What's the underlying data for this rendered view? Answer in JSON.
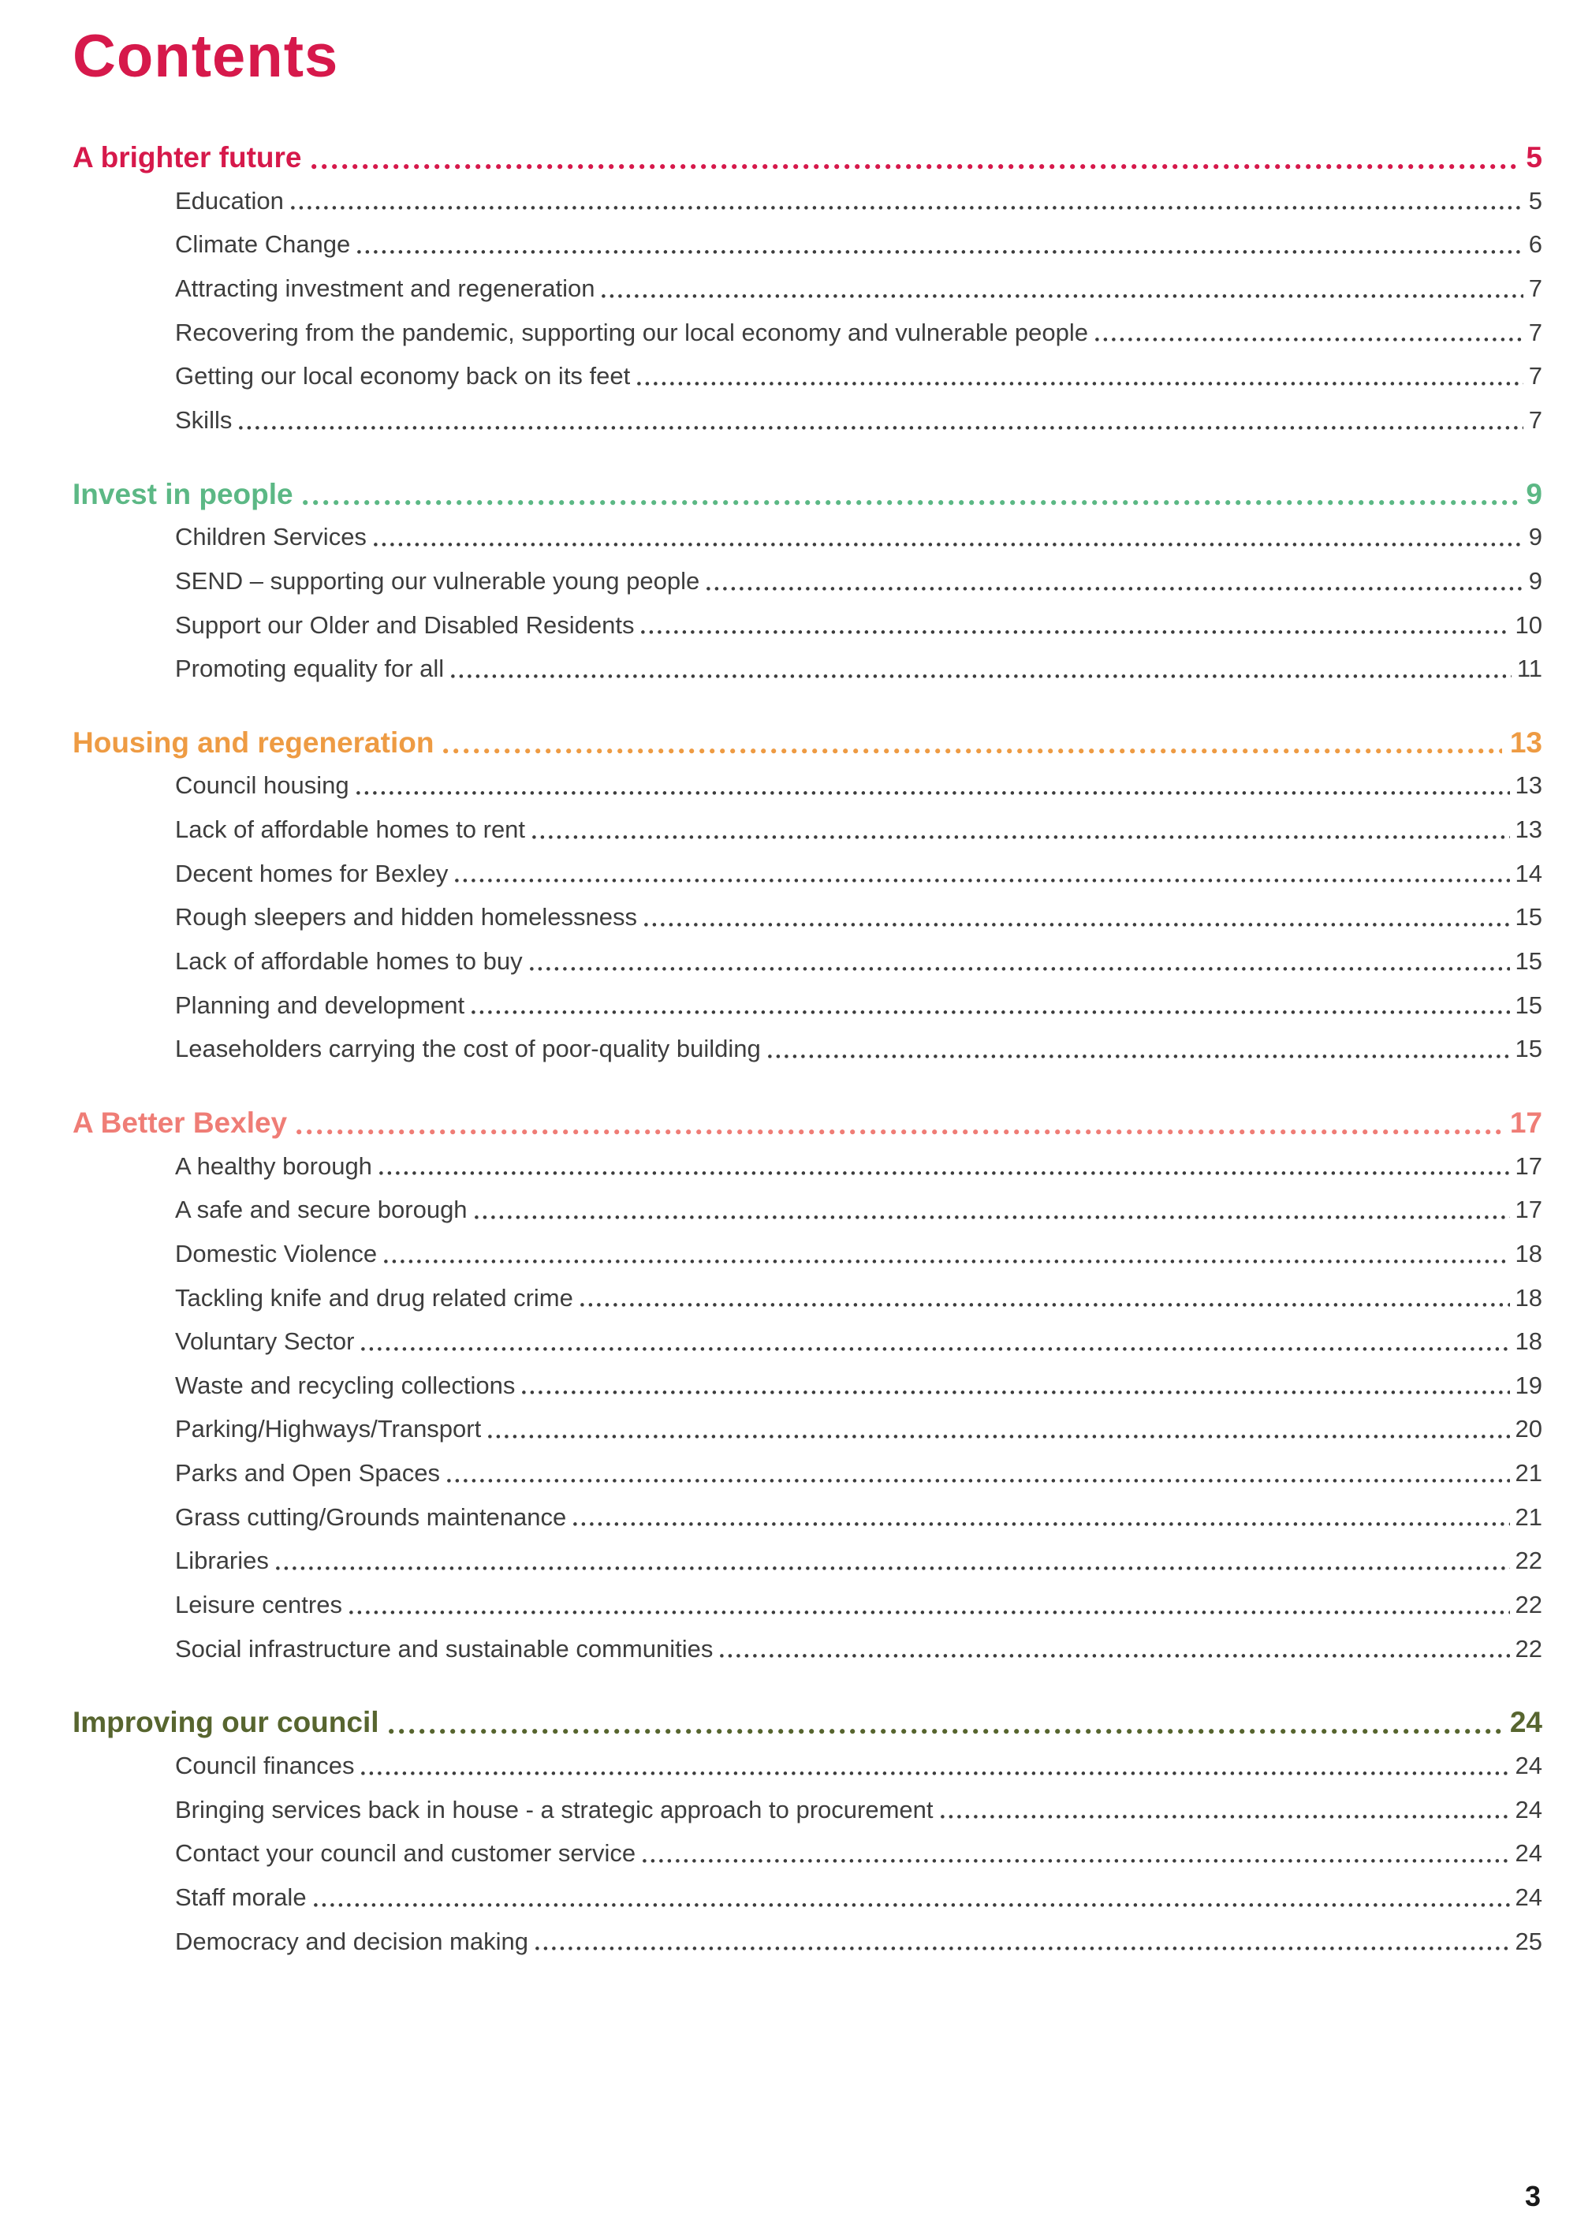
{
  "page": {
    "title": "Contents",
    "page_number": "3"
  },
  "colors": {
    "title": "#d6194b",
    "section_brighter_future": "#d6194b",
    "section_invest_in_people": "#5cb885",
    "section_housing": "#ee9b43",
    "section_better_bexley": "#ef7d76",
    "section_improving_council": "#57652f",
    "entry_text": "#3d3d3d"
  },
  "sections": [
    {
      "title": "A brighter future",
      "page": "5",
      "color": "#d6194b",
      "items": [
        {
          "label": "Education",
          "page": "5"
        },
        {
          "label": "Climate Change",
          "page": "6"
        },
        {
          "label": "Attracting investment and regeneration",
          "page": "7"
        },
        {
          "label": "Recovering from the pandemic, supporting our local economy and vulnerable people",
          "page": "7"
        },
        {
          "label": "Getting our local economy back on its feet",
          "page": "7"
        },
        {
          "label": "Skills",
          "page": "7"
        }
      ]
    },
    {
      "title": "Invest in people",
      "page": "9",
      "color": "#5cb885",
      "items": [
        {
          "label": "Children Services",
          "page": "9"
        },
        {
          "label": "SEND – supporting our vulnerable young people",
          "page": "9"
        },
        {
          "label": "Support our Older and Disabled Residents",
          "page": "10"
        },
        {
          "label": "Promoting equality for all",
          "page": "11"
        }
      ]
    },
    {
      "title": "Housing and regeneration",
      "page": "13",
      "color": "#ee9b43",
      "items": [
        {
          "label": "Council housing",
          "page": "13"
        },
        {
          "label": "Lack of affordable homes to rent",
          "page": "13"
        },
        {
          "label": "Decent homes for Bexley",
          "page": "14"
        },
        {
          "label": "Rough sleepers and hidden homelessness",
          "page": "15"
        },
        {
          "label": "Lack of affordable homes to buy",
          "page": "15"
        },
        {
          "label": "Planning and development",
          "page": "15"
        },
        {
          "label": "Leaseholders carrying the cost of poor-quality building",
          "page": "15"
        }
      ]
    },
    {
      "title": "A Better Bexley",
      "page": "17",
      "color": "#ef7d76",
      "items": [
        {
          "label": "A healthy borough",
          "page": "17"
        },
        {
          "label": "A safe and secure borough",
          "page": "17"
        },
        {
          "label": "Domestic Violence",
          "page": "18"
        },
        {
          "label": "Tackling knife and drug related crime",
          "page": "18"
        },
        {
          "label": "Voluntary Sector",
          "page": "18"
        },
        {
          "label": "Waste and recycling collections",
          "page": "19"
        },
        {
          "label": "Parking/Highways/Transport",
          "page": "20"
        },
        {
          "label": "Parks and Open Spaces",
          "page": "21"
        },
        {
          "label": "Grass cutting/Grounds maintenance",
          "page": "21"
        },
        {
          "label": "Libraries",
          "page": "22"
        },
        {
          "label": "Leisure centres",
          "page": "22"
        },
        {
          "label": "Social infrastructure and sustainable communities",
          "page": "22"
        }
      ]
    },
    {
      "title": "Improving our council",
      "page": "24",
      "color": "#57652f",
      "items": [
        {
          "label": "Council finances",
          "page": "24"
        },
        {
          "label": "Bringing services back in house - a strategic approach to procurement",
          "page": "24"
        },
        {
          "label": "Contact your council and customer service",
          "page": "24"
        },
        {
          "label": "Staff morale",
          "page": "24"
        },
        {
          "label": "Democracy and decision making",
          "page": "25"
        }
      ]
    }
  ]
}
